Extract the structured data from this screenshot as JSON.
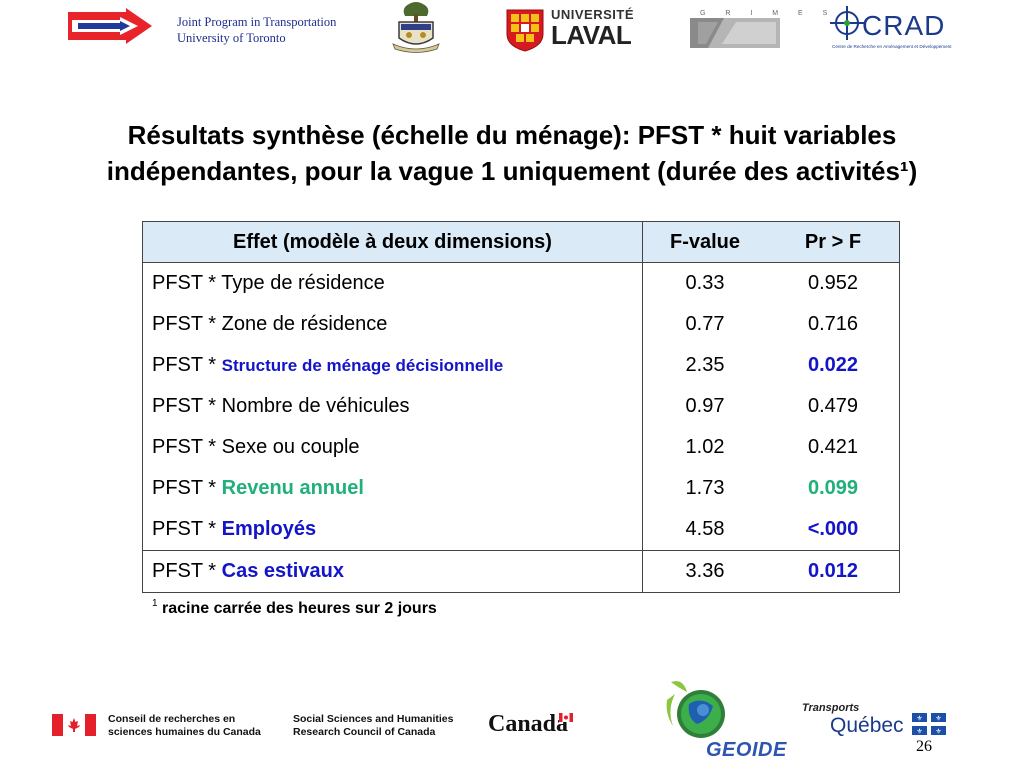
{
  "header": {
    "jpt_line1": "Joint Program in Transportation",
    "jpt_line2": "University of Toronto",
    "laval_top": "UNIVERSITÉ",
    "laval_name": "LAVAL",
    "grimes_label": "G R I M E S",
    "crad_name": "CRAD",
    "crad_sub": "Centre de Recherche en Aménagement et Développement"
  },
  "title": {
    "line1": "Résultats synthèse (échelle du ménage): PFST * huit variables",
    "line2": "indépendantes, pour la vague 1 uniquement (durée des activités¹)"
  },
  "table": {
    "headers": [
      "Effet (modèle à deux dimensions)",
      "F-value",
      "Pr > F"
    ],
    "rows": [
      {
        "prefix": "PFST * ",
        "effect": "Type de résidence",
        "f": "0.33",
        "p": "0.952"
      },
      {
        "prefix": "PFST * ",
        "effect": "Zone de résidence",
        "f": "0.77",
        "p": "0.716"
      },
      {
        "prefix": "PFST * ",
        "effect": "Structure de ménage décisionnelle",
        "f": "2.35",
        "p": "0.022"
      },
      {
        "prefix": "PFST * ",
        "effect": "Nombre de véhicules",
        "f": "0.97",
        "p": "0.479"
      },
      {
        "prefix": "PFST * ",
        "effect": "Sexe ou couple",
        "f": "1.02",
        "p": "0.421"
      },
      {
        "prefix": "PFST * ",
        "effect": "Revenu annuel",
        "f": "1.73",
        "p": "0.099"
      },
      {
        "prefix": "PFST * ",
        "effect": "Employés",
        "f": "4.58",
        "p": "<.000"
      },
      {
        "prefix": "PFST * ",
        "effect": "Cas estivaux",
        "f": "3.36",
        "p": "0.012"
      }
    ]
  },
  "footnote": {
    "marker": "1",
    "text": "racine carrée des heures sur 2 jours"
  },
  "footer": {
    "sshrc_fr_line1": "Conseil de recherches en",
    "sshrc_fr_line2": "sciences humaines du Canada",
    "sshrc_en_line1": "Social Sciences and Humanities",
    "sshrc_en_line2": "Research Council of Canada",
    "canada_wordmark": "Canada",
    "geoide": "GEOIDE",
    "tq_label": "Transports",
    "tq_name": "Québec",
    "page_number": "26"
  },
  "colors": {
    "highlight_blue": "#1414c8",
    "highlight_green": "#21b07a",
    "header_fill": "#dbeaf7"
  }
}
